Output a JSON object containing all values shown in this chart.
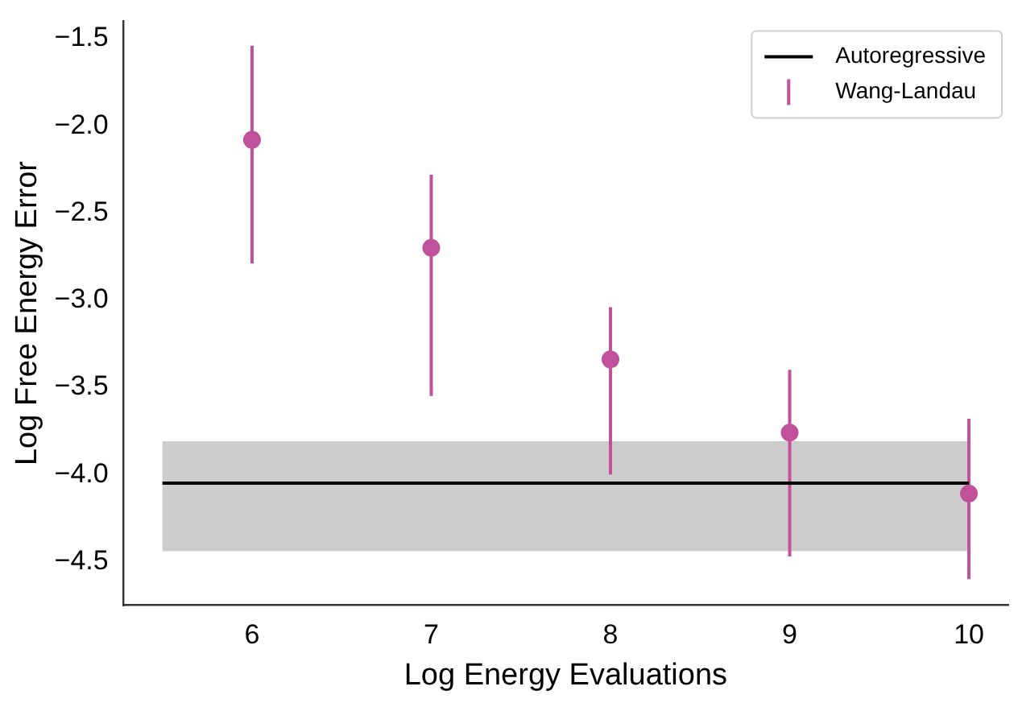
{
  "chart_data": {
    "type": "scatter",
    "xlabel": "Log Energy Evaluations",
    "ylabel": "Log Free Energy Error",
    "xlim": [
      5.28,
      10.22
    ],
    "xticks": [
      6,
      7,
      8,
      9,
      10
    ],
    "ylim": [
      -4.75,
      -1.4
    ],
    "yticks": [
      {
        "value": -4.5,
        "label": "−4.5"
      },
      {
        "value": -4.0,
        "label": "−4.0"
      },
      {
        "value": -3.5,
        "label": "−3.5"
      },
      {
        "value": -3.0,
        "label": "−3.0"
      },
      {
        "value": -2.5,
        "label": "−2.5"
      },
      {
        "value": -2.0,
        "label": "−2.0"
      },
      {
        "value": -1.5,
        "label": "−1.5"
      }
    ],
    "grid": false,
    "legend": "top right",
    "series": [
      {
        "name": "Autoregressive",
        "type": "line",
        "color": "#000000",
        "x": [
          5.5,
          10
        ],
        "values": [
          -4.05,
          -4.05
        ],
        "lower": [
          -4.44,
          -4.44
        ],
        "upper": [
          -3.81,
          -3.81
        ]
      },
      {
        "name": "Wang-Landau",
        "type": "scatter",
        "marker": "circle",
        "color": "#c0519a",
        "x": [
          6,
          7,
          8,
          9,
          10
        ],
        "values": [
          -2.08,
          -2.7,
          -3.34,
          -3.76,
          -4.11
        ],
        "errors": [
          [
            -2.79,
            -1.54
          ],
          [
            -3.55,
            -2.28
          ],
          [
            -4.0,
            -3.04
          ],
          [
            -4.47,
            -3.4
          ],
          [
            -4.6,
            -3.68
          ]
        ]
      }
    ]
  }
}
